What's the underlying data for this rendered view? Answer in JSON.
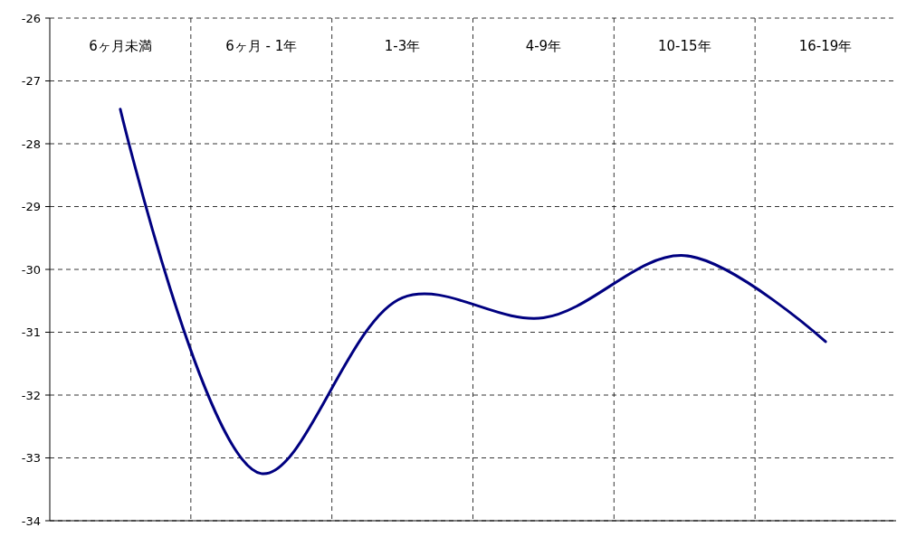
{
  "chart_data": {
    "type": "line",
    "categories": [
      "6ヶ月未満",
      "6ヶ月 - 1年",
      "1-3年",
      "4-9年",
      "10-15年",
      "16-19年"
    ],
    "series": [
      {
        "color": "#000080",
        "values": [
          -27.45,
          -33.25,
          -30.45,
          -30.77,
          -29.78,
          -31.15
        ]
      }
    ],
    "ylim": [
      -34,
      -26
    ],
    "yticks": [
      -34,
      -33,
      -32,
      -31,
      -30,
      -29,
      -28,
      -27,
      -26
    ],
    "grid": true,
    "marker": "none",
    "line_style": "solid"
  }
}
